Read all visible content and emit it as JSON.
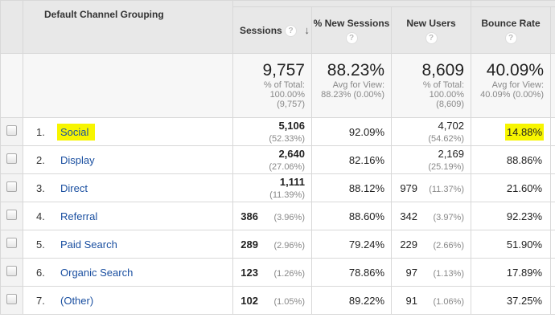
{
  "header": {
    "dimension": "Default Channel Grouping",
    "help": "?",
    "sort_arrow": "↓",
    "columns": [
      "Sessions",
      "% New Sessions",
      "New Users",
      "Bounce Rate"
    ]
  },
  "totals": {
    "sessions": {
      "value": "9,757",
      "l1": "% of Total:",
      "l2": "100.00%",
      "l3": "(9,757)"
    },
    "new_sessions": {
      "value": "88.23%",
      "l1": "Avg for View:",
      "l2": "88.23% (0.00%)"
    },
    "new_users": {
      "value": "8,609",
      "l1": "% of Total:",
      "l2": "100.00%",
      "l3": "(8,609)"
    },
    "bounce": {
      "value": "40.09%",
      "l1": "Avg for View:",
      "l2": "40.09% (0.00%)"
    }
  },
  "highlight_color": "#f7f500",
  "rows": [
    {
      "idx": "1.",
      "name": "Social",
      "sessions": "5,106",
      "sessions_pct": "(52.33%)",
      "new_sessions": "92.09%",
      "new_users": "4,702",
      "new_users_pct": "(54.62%)",
      "bounce": "14.88%"
    },
    {
      "idx": "2.",
      "name": "Display",
      "sessions": "2,640",
      "sessions_pct": "(27.06%)",
      "new_sessions": "82.16%",
      "new_users": "2,169",
      "new_users_pct": "(25.19%)",
      "bounce": "88.86%"
    },
    {
      "idx": "3.",
      "name": "Direct",
      "sessions": "1,111",
      "sessions_pct": "(11.39%)",
      "new_sessions": "88.12%",
      "new_users": "979",
      "new_users_pct": "(11.37%)",
      "bounce": "21.60%"
    },
    {
      "idx": "4.",
      "name": "Referral",
      "sessions": "386",
      "sessions_pct": "(3.96%)",
      "new_sessions": "88.60%",
      "new_users": "342",
      "new_users_pct": "(3.97%)",
      "bounce": "92.23%"
    },
    {
      "idx": "5.",
      "name": "Paid Search",
      "sessions": "289",
      "sessions_pct": "(2.96%)",
      "new_sessions": "79.24%",
      "new_users": "229",
      "new_users_pct": "(2.66%)",
      "bounce": "51.90%"
    },
    {
      "idx": "6.",
      "name": "Organic Search",
      "sessions": "123",
      "sessions_pct": "(1.26%)",
      "new_sessions": "78.86%",
      "new_users": "97",
      "new_users_pct": "(1.13%)",
      "bounce": "17.89%"
    },
    {
      "idx": "7.",
      "name": "(Other)",
      "sessions": "102",
      "sessions_pct": "(1.05%)",
      "new_sessions": "89.22%",
      "new_users": "91",
      "new_users_pct": "(1.06%)",
      "bounce": "37.25%"
    }
  ]
}
